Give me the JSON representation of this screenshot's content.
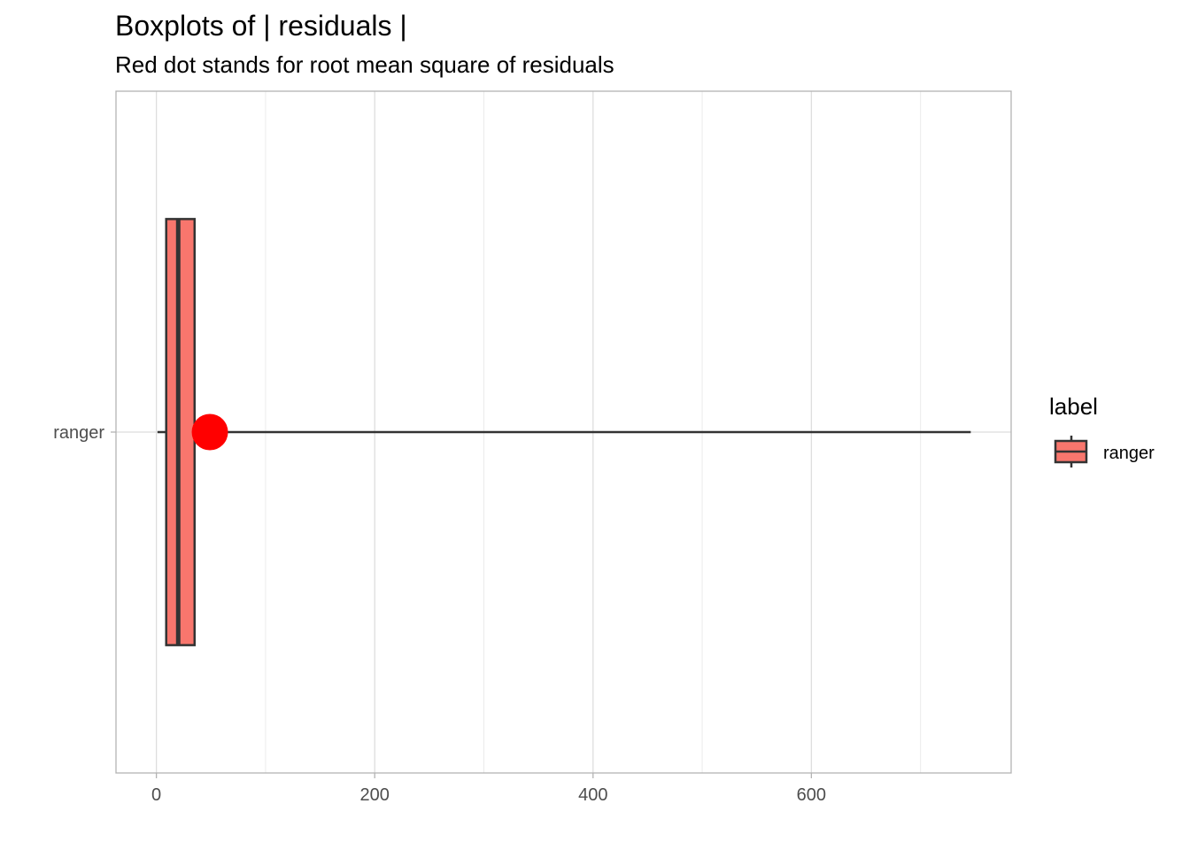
{
  "chart_data": {
    "type": "boxplot",
    "title": "Boxplots of | residuals |",
    "subtitle": "Red dot stands for root mean square of residuals",
    "xlabel": "",
    "ylabel": "",
    "xlim": [
      -37,
      783
    ],
    "x_ticks": [
      0,
      200,
      400,
      600
    ],
    "x_tick_labels": [
      "0",
      "200",
      "400",
      "600"
    ],
    "x_minor_ticks": [
      100,
      300,
      500,
      700
    ],
    "categories": [
      "ranger"
    ],
    "series": [
      {
        "name": "ranger",
        "whisker_low": 1,
        "q1": 9,
        "median": 20,
        "q3": 35,
        "whisker_high": 746,
        "rmse": 49,
        "box_color": "#F8766D",
        "line_color": "#333333",
        "rmse_color": "#FF0000"
      }
    ],
    "grid": true,
    "legend": {
      "title": "label",
      "position": "right",
      "entries": [
        "ranger"
      ]
    }
  }
}
